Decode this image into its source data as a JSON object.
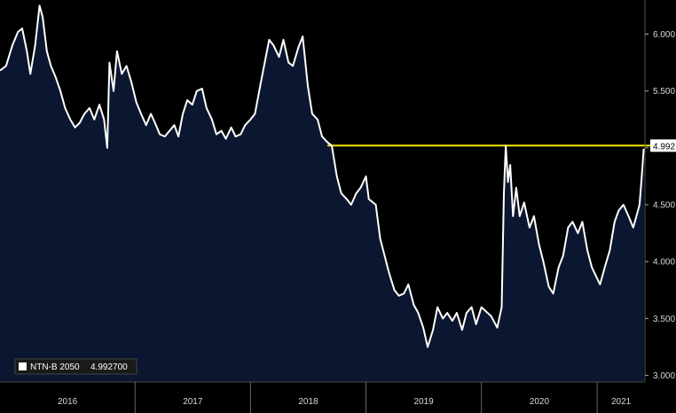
{
  "chart_data": {
    "type": "area",
    "ylim": [
      2.95,
      6.3
    ],
    "y_ticks": [
      {
        "value": 3.0,
        "label": "3.000"
      },
      {
        "value": 3.5,
        "label": "3.500"
      },
      {
        "value": 4.0,
        "label": "4.000"
      },
      {
        "value": 4.5,
        "label": "4.500"
      },
      {
        "value": 5.0,
        "label": "5.000"
      },
      {
        "value": 5.5,
        "label": "5.500"
      },
      {
        "value": 6.0,
        "label": "6.000"
      }
    ],
    "year_labels": [
      "2016",
      "2017",
      "2018",
      "2019",
      "2020",
      "2021"
    ],
    "year_boundaries": [
      "2017-01-01",
      "2018-01-01",
      "2019-01-01",
      "2020-01-01",
      "2021-01-01"
    ],
    "x_range": [
      "2015-11-01",
      "2021-06-01"
    ],
    "last_value_label": "4.992",
    "reference_line": {
      "value": 5.02,
      "start": "2018-09-01",
      "end": "2021-06-01",
      "color": "#f2e600"
    },
    "grid": false,
    "legend": {
      "position": "bottom-left",
      "entries": [
        {
          "label": "NTN-B 2050",
          "value": "4.992700"
        }
      ]
    },
    "series": [
      {
        "name": "NTN-B 2050",
        "line_color": "#ffffff",
        "fill_color": "#0b1730",
        "points": [
          [
            "2015-11-01",
            5.68
          ],
          [
            "2015-11-20",
            5.72
          ],
          [
            "2015-12-10",
            5.9
          ],
          [
            "2015-12-28",
            6.02
          ],
          [
            "2016-01-10",
            6.05
          ],
          [
            "2016-01-25",
            5.85
          ],
          [
            "2016-02-05",
            5.65
          ],
          [
            "2016-02-20",
            5.9
          ],
          [
            "2016-03-05",
            6.25
          ],
          [
            "2016-03-15",
            6.15
          ],
          [
            "2016-03-28",
            5.85
          ],
          [
            "2016-04-10",
            5.72
          ],
          [
            "2016-04-25",
            5.62
          ],
          [
            "2016-05-10",
            5.5
          ],
          [
            "2016-05-25",
            5.35
          ],
          [
            "2016-06-10",
            5.25
          ],
          [
            "2016-06-25",
            5.18
          ],
          [
            "2016-07-10",
            5.22
          ],
          [
            "2016-07-25",
            5.3
          ],
          [
            "2016-08-10",
            5.35
          ],
          [
            "2016-08-25",
            5.25
          ],
          [
            "2016-09-10",
            5.38
          ],
          [
            "2016-09-25",
            5.25
          ],
          [
            "2016-10-05",
            5.0
          ],
          [
            "2016-10-12",
            5.75
          ],
          [
            "2016-10-25",
            5.5
          ],
          [
            "2016-11-05",
            5.85
          ],
          [
            "2016-11-20",
            5.65
          ],
          [
            "2016-12-05",
            5.72
          ],
          [
            "2016-12-20",
            5.58
          ],
          [
            "2017-01-05",
            5.4
          ],
          [
            "2017-01-20",
            5.3
          ],
          [
            "2017-02-05",
            5.2
          ],
          [
            "2017-02-20",
            5.3
          ],
          [
            "2017-03-05",
            5.22
          ],
          [
            "2017-03-20",
            5.12
          ],
          [
            "2017-04-05",
            5.1
          ],
          [
            "2017-04-20",
            5.15
          ],
          [
            "2017-05-05",
            5.2
          ],
          [
            "2017-05-18",
            5.1
          ],
          [
            "2017-06-01",
            5.3
          ],
          [
            "2017-06-15",
            5.42
          ],
          [
            "2017-07-01",
            5.38
          ],
          [
            "2017-07-15",
            5.5
          ],
          [
            "2017-08-01",
            5.52
          ],
          [
            "2017-08-15",
            5.35
          ],
          [
            "2017-09-01",
            5.25
          ],
          [
            "2017-09-15",
            5.12
          ],
          [
            "2017-10-01",
            5.15
          ],
          [
            "2017-10-15",
            5.08
          ],
          [
            "2017-11-01",
            5.18
          ],
          [
            "2017-11-15",
            5.1
          ],
          [
            "2017-12-01",
            5.12
          ],
          [
            "2017-12-15",
            5.2
          ],
          [
            "2018-01-01",
            5.25
          ],
          [
            "2018-01-15",
            5.3
          ],
          [
            "2018-02-01",
            5.55
          ],
          [
            "2018-02-15",
            5.75
          ],
          [
            "2018-03-01",
            5.95
          ],
          [
            "2018-03-15",
            5.9
          ],
          [
            "2018-04-01",
            5.8
          ],
          [
            "2018-04-15",
            5.95
          ],
          [
            "2018-05-01",
            5.75
          ],
          [
            "2018-05-15",
            5.72
          ],
          [
            "2018-06-01",
            5.88
          ],
          [
            "2018-06-15",
            5.98
          ],
          [
            "2018-07-01",
            5.55
          ],
          [
            "2018-07-15",
            5.3
          ],
          [
            "2018-08-01",
            5.25
          ],
          [
            "2018-08-15",
            5.1
          ],
          [
            "2018-09-01",
            5.05
          ],
          [
            "2018-09-15",
            5.02
          ],
          [
            "2018-10-01",
            4.75
          ],
          [
            "2018-10-15",
            4.6
          ],
          [
            "2018-11-01",
            4.55
          ],
          [
            "2018-11-15",
            4.5
          ],
          [
            "2018-12-01",
            4.6
          ],
          [
            "2018-12-15",
            4.65
          ],
          [
            "2019-01-01",
            4.75
          ],
          [
            "2019-01-10",
            4.55
          ],
          [
            "2019-02-01",
            4.5
          ],
          [
            "2019-02-15",
            4.2
          ],
          [
            "2019-03-01",
            4.05
          ],
          [
            "2019-03-15",
            3.9
          ],
          [
            "2019-04-01",
            3.75
          ],
          [
            "2019-04-15",
            3.7
          ],
          [
            "2019-05-01",
            3.72
          ],
          [
            "2019-05-15",
            3.8
          ],
          [
            "2019-06-01",
            3.62
          ],
          [
            "2019-06-15",
            3.55
          ],
          [
            "2019-07-01",
            3.42
          ],
          [
            "2019-07-15",
            3.25
          ],
          [
            "2019-08-01",
            3.4
          ],
          [
            "2019-08-15",
            3.6
          ],
          [
            "2019-09-01",
            3.5
          ],
          [
            "2019-09-15",
            3.55
          ],
          [
            "2019-10-01",
            3.48
          ],
          [
            "2019-10-15",
            3.55
          ],
          [
            "2019-11-01",
            3.4
          ],
          [
            "2019-11-15",
            3.55
          ],
          [
            "2019-12-01",
            3.6
          ],
          [
            "2019-12-15",
            3.45
          ],
          [
            "2020-01-01",
            3.6
          ],
          [
            "2020-02-01",
            3.52
          ],
          [
            "2020-02-20",
            3.42
          ],
          [
            "2020-03-05",
            3.6
          ],
          [
            "2020-03-12",
            4.6
          ],
          [
            "2020-03-18",
            5.02
          ],
          [
            "2020-03-25",
            4.7
          ],
          [
            "2020-04-01",
            4.85
          ],
          [
            "2020-04-10",
            4.4
          ],
          [
            "2020-04-20",
            4.65
          ],
          [
            "2020-05-01",
            4.4
          ],
          [
            "2020-05-15",
            4.52
          ],
          [
            "2020-06-01",
            4.3
          ],
          [
            "2020-06-15",
            4.4
          ],
          [
            "2020-07-01",
            4.15
          ],
          [
            "2020-07-15",
            4.0
          ],
          [
            "2020-08-01",
            3.78
          ],
          [
            "2020-08-15",
            3.72
          ],
          [
            "2020-09-01",
            3.95
          ],
          [
            "2020-09-15",
            4.05
          ],
          [
            "2020-10-01",
            4.3
          ],
          [
            "2020-10-15",
            4.35
          ],
          [
            "2020-11-01",
            4.25
          ],
          [
            "2020-11-15",
            4.35
          ],
          [
            "2020-12-01",
            4.1
          ],
          [
            "2020-12-15",
            3.95
          ],
          [
            "2021-01-01",
            3.85
          ],
          [
            "2021-01-10",
            3.8
          ],
          [
            "2021-01-25",
            3.95
          ],
          [
            "2021-02-10",
            4.1
          ],
          [
            "2021-02-25",
            4.35
          ],
          [
            "2021-03-10",
            4.45
          ],
          [
            "2021-03-25",
            4.5
          ],
          [
            "2021-04-10",
            4.4
          ],
          [
            "2021-04-25",
            4.3
          ],
          [
            "2021-05-05",
            4.4
          ],
          [
            "2021-05-15",
            4.5
          ],
          [
            "2021-05-22",
            4.75
          ],
          [
            "2021-05-28",
            4.9927
          ]
        ]
      }
    ]
  }
}
